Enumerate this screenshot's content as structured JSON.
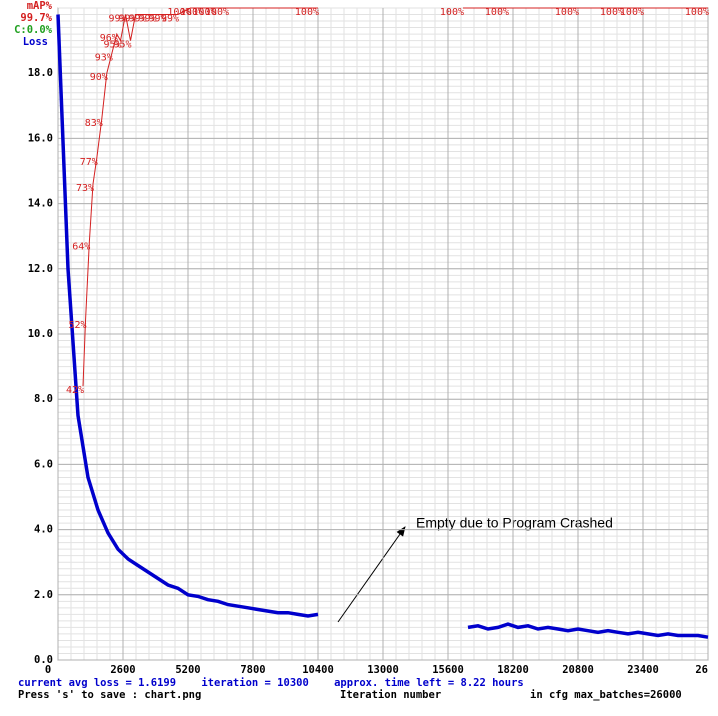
{
  "chart_data": {
    "type": "line",
    "header": [
      "mAP%",
      "99.7%",
      "C:0.0%",
      "Loss"
    ],
    "footer": {
      "status": "current avg loss = 1.6199    iteration = 10300    approx. time left = 8.22 hours",
      "save": "Press 's' to save : chart.png",
      "xlabel": "Iteration number",
      "cfg": "in cfg max_batches=26000"
    },
    "annotation": "Empty due to Program Crashed",
    "xlim": [
      0,
      26000
    ],
    "xticks": [
      0,
      2600,
      5200,
      7800,
      10400,
      13000,
      15600,
      18200,
      20800,
      23400,
      {
        "value": 26000,
        "label": "26"
      }
    ],
    "ylim": [
      0,
      20
    ],
    "yticks": [
      {
        "value": 0,
        "label": "0.0"
      },
      {
        "value": 2,
        "label": "2.0"
      },
      {
        "value": 4,
        "label": "4.0"
      },
      {
        "value": 6,
        "label": "6.0"
      },
      {
        "value": 8,
        "label": "8.0"
      },
      {
        "value": 10,
        "label": "10.0"
      },
      {
        "value": 12,
        "label": "12.0"
      },
      {
        "value": 14,
        "label": "14.0"
      },
      {
        "value": 16,
        "label": "16.0"
      },
      {
        "value": 18,
        "label": "18.0"
      }
    ],
    "y2lim": [
      0,
      100
    ],
    "grid": true,
    "series": [
      {
        "name": "Loss",
        "color": "#0000cc",
        "x": [
          0,
          400,
          800,
          1200,
          1600,
          2000,
          2400,
          2800,
          3200,
          3600,
          4000,
          4400,
          4800,
          5200,
          5600,
          6000,
          6400,
          6800,
          7200,
          7600,
          8000,
          8400,
          8800,
          9200,
          9600,
          10000,
          10400,
          13000,
          16400,
          16800,
          17200,
          17600,
          18000,
          18400,
          18800,
          19200,
          19600,
          20000,
          20400,
          20800,
          21200,
          21600,
          22000,
          22400,
          22800,
          23200,
          23600,
          24000,
          24400,
          24800,
          25200,
          25600,
          26000
        ],
        "values": [
          19.8,
          12.0,
          7.5,
          5.6,
          4.6,
          3.9,
          3.4,
          3.1,
          2.9,
          2.7,
          2.5,
          2.3,
          2.2,
          2.0,
          1.95,
          1.85,
          1.8,
          1.7,
          1.65,
          1.6,
          1.55,
          1.5,
          1.45,
          1.45,
          1.4,
          1.35,
          1.4,
          null,
          1.0,
          1.05,
          0.95,
          1.0,
          1.1,
          1.0,
          1.05,
          0.95,
          1.0,
          0.95,
          0.9,
          0.95,
          0.9,
          0.85,
          0.9,
          0.85,
          0.8,
          0.85,
          0.8,
          0.75,
          0.8,
          0.75,
          0.75,
          0.75,
          0.7
        ]
      },
      {
        "name": "mAP%",
        "color": "#d42020",
        "axis": "y2",
        "x": [
          1000,
          1100,
          1250,
          1400,
          1550,
          1750,
          1950,
          2150,
          2350,
          2500,
          2700,
          2900,
          3100,
          3500,
          3900,
          4300,
          4800,
          5300,
          5800,
          6300,
          6800,
          10400,
          13000,
          16200,
          18000,
          20800,
          22600,
          23400,
          26000
        ],
        "values": [
          42,
          52,
          64,
          73,
          77,
          83,
          90,
          93,
          96,
          95,
          99,
          95,
          99,
          99,
          99,
          99,
          99,
          100,
          100,
          100,
          100,
          100,
          null,
          100,
          100,
          100,
          100,
          100,
          100
        ],
        "value_labels": [
          "42%",
          "52%",
          "64%",
          "73%",
          "77%",
          "83%",
          "90%",
          "93%",
          "96%",
          "95%",
          "99%",
          "95%",
          "99%",
          "99%",
          "99%",
          "99%",
          "99%",
          "100%",
          "100%",
          "100%",
          "100%",
          "100%",
          null,
          "100%",
          "100%",
          "100%",
          "100%",
          "100%",
          "100%"
        ]
      }
    ]
  }
}
